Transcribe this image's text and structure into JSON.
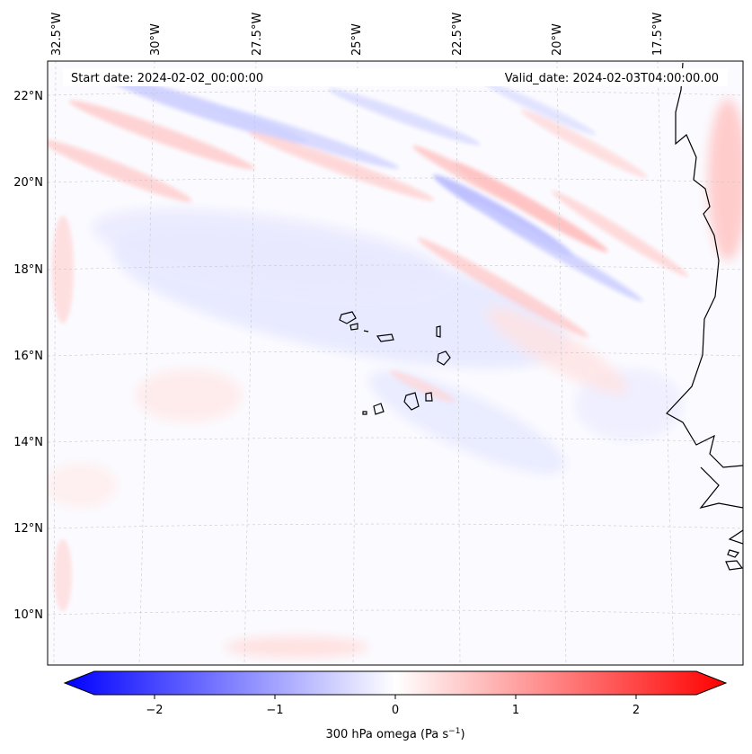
{
  "map": {
    "start_date_label": "Start date: 2024-02-02_00:00:00",
    "valid_date_label": "Valid_date: 2024-02-03T04:00:00.00",
    "lon_labels": [
      "32.5°W",
      "30°W",
      "27.5°W",
      "25°W",
      "22.5°W",
      "20°W",
      "17.5°W"
    ],
    "lat_labels": [
      "22°N",
      "20°N",
      "18°N",
      "16°N",
      "14°N",
      "12°N",
      "10°N"
    ],
    "lon_range": [
      -33,
      -16.5
    ],
    "lat_range": [
      8.8,
      22.8
    ]
  },
  "colorbar": {
    "label": "300 hPa omega (Pa s",
    "label_exp": "−1",
    "label_close": ")",
    "ticks": [
      "−2",
      "−1",
      "0",
      "1",
      "2"
    ],
    "range": [
      -2.6,
      2.6
    ],
    "colors": {
      "negative": "#0000ff",
      "zero": "#ffffff",
      "positive": "#ff0000"
    }
  }
}
